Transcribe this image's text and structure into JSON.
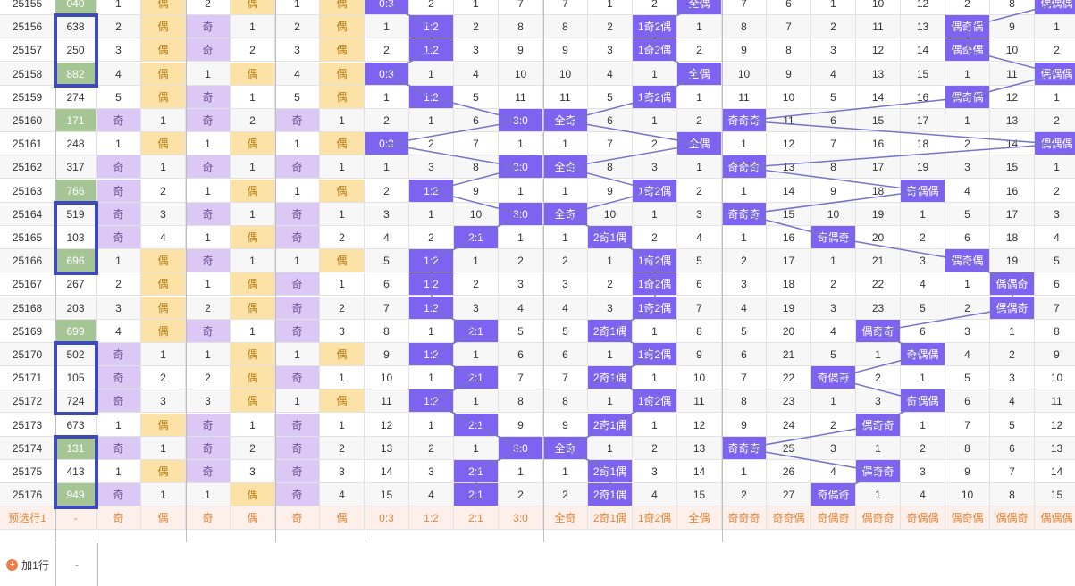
{
  "rows": [
    {
      "id": "25155",
      "num": "040",
      "c": [
        "1",
        "偶",
        "2",
        "偶",
        "1",
        "偶",
        "0:3",
        "2",
        "1",
        "7",
        "7",
        "1",
        "2",
        "全偶",
        "7",
        "6",
        "1",
        "10",
        "12",
        "2",
        "8",
        "偶偶偶"
      ]
    },
    {
      "id": "25156",
      "num": "638",
      "c": [
        "2",
        "偶",
        "奇",
        "1",
        "2",
        "偶",
        "1",
        "1:2",
        "2",
        "8",
        "8",
        "2",
        "1奇2偶",
        "1",
        "8",
        "7",
        "2",
        "11",
        "13",
        "偶奇偶",
        "9",
        "1"
      ]
    },
    {
      "id": "25157",
      "num": "250",
      "c": [
        "3",
        "偶",
        "奇",
        "2",
        "3",
        "偶",
        "2",
        "1:2",
        "3",
        "9",
        "9",
        "3",
        "1奇2偶",
        "2",
        "9",
        "8",
        "3",
        "12",
        "14",
        "偶奇偶",
        "10",
        "2"
      ]
    },
    {
      "id": "25158",
      "num": "882",
      "c": [
        "4",
        "偶",
        "1",
        "偶",
        "4",
        "偶",
        "0:3",
        "1",
        "4",
        "10",
        "10",
        "4",
        "1",
        "全偶",
        "10",
        "9",
        "4",
        "13",
        "15",
        "1",
        "11",
        "偶偶偶"
      ]
    },
    {
      "id": "25159",
      "num": "274",
      "c": [
        "5",
        "偶",
        "奇",
        "1",
        "5",
        "偶",
        "1",
        "1:2",
        "5",
        "11",
        "11",
        "5",
        "1奇2偶",
        "1",
        "11",
        "10",
        "5",
        "14",
        "16",
        "偶奇偶",
        "12",
        "1"
      ]
    },
    {
      "id": "25160",
      "num": "171",
      "c": [
        "奇",
        "1",
        "奇",
        "2",
        "奇",
        "1",
        "2",
        "1",
        "6",
        "3:0",
        "全奇",
        "6",
        "1",
        "2",
        "奇奇奇",
        "11",
        "6",
        "15",
        "17",
        "1",
        "13",
        "2"
      ]
    },
    {
      "id": "25161",
      "num": "248",
      "c": [
        "1",
        "偶",
        "1",
        "偶",
        "1",
        "偶",
        "0:3",
        "2",
        "7",
        "1",
        "1",
        "7",
        "2",
        "全偶",
        "1",
        "12",
        "7",
        "16",
        "18",
        "2",
        "14",
        "偶偶偶"
      ]
    },
    {
      "id": "25162",
      "num": "317",
      "c": [
        "奇",
        "1",
        "奇",
        "1",
        "奇",
        "1",
        "1",
        "3",
        "8",
        "3:0",
        "全奇",
        "8",
        "3",
        "1",
        "奇奇奇",
        "13",
        "8",
        "17",
        "19",
        "3",
        "15",
        "1"
      ]
    },
    {
      "id": "25163",
      "num": "766",
      "c": [
        "奇",
        "2",
        "1",
        "偶",
        "1",
        "偶",
        "2",
        "1:2",
        "9",
        "1",
        "1",
        "9",
        "1奇2偶",
        "2",
        "1",
        "14",
        "9",
        "18",
        "奇偶偶",
        "4",
        "16",
        "2"
      ]
    },
    {
      "id": "25164",
      "num": "519",
      "c": [
        "奇",
        "3",
        "奇",
        "1",
        "奇",
        "1",
        "3",
        "1",
        "10",
        "3:0",
        "全奇",
        "10",
        "1",
        "3",
        "奇奇奇",
        "15",
        "10",
        "19",
        "1",
        "5",
        "17",
        "3"
      ]
    },
    {
      "id": "25165",
      "num": "103",
      "c": [
        "奇",
        "4",
        "1",
        "偶",
        "奇",
        "2",
        "4",
        "2",
        "2:1",
        "1",
        "1",
        "2奇1偶",
        "2",
        "4",
        "1",
        "16",
        "奇偶奇",
        "20",
        "2",
        "6",
        "18",
        "4"
      ]
    },
    {
      "id": "25166",
      "num": "696",
      "c": [
        "1",
        "偶",
        "奇",
        "1",
        "1",
        "偶",
        "5",
        "1:2",
        "1",
        "2",
        "2",
        "1",
        "1奇2偶",
        "5",
        "2",
        "17",
        "1",
        "21",
        "3",
        "偶奇偶",
        "19",
        "5"
      ]
    },
    {
      "id": "25167",
      "num": "267",
      "c": [
        "2",
        "偶",
        "1",
        "偶",
        "奇",
        "1",
        "6",
        "1:2",
        "2",
        "3",
        "3",
        "2",
        "1奇2偶",
        "6",
        "3",
        "18",
        "2",
        "22",
        "4",
        "1",
        "偶偶奇",
        "6"
      ]
    },
    {
      "id": "25168",
      "num": "203",
      "c": [
        "3",
        "偶",
        "2",
        "偶",
        "奇",
        "2",
        "7",
        "1:2",
        "3",
        "4",
        "4",
        "3",
        "1奇2偶",
        "7",
        "4",
        "19",
        "3",
        "23",
        "5",
        "2",
        "偶偶奇",
        "7"
      ]
    },
    {
      "id": "25169",
      "num": "699",
      "c": [
        "4",
        "偶",
        "奇",
        "1",
        "奇",
        "3",
        "8",
        "1",
        "2:1",
        "5",
        "5",
        "2奇1偶",
        "1",
        "8",
        "5",
        "20",
        "4",
        "偶奇奇",
        "6",
        "3",
        "1",
        "8"
      ]
    },
    {
      "id": "25170",
      "num": "502",
      "c": [
        "奇",
        "1",
        "1",
        "偶",
        "1",
        "偶",
        "9",
        "1:2",
        "1",
        "6",
        "6",
        "1",
        "1奇2偶",
        "9",
        "6",
        "21",
        "5",
        "1",
        "奇偶偶",
        "4",
        "2",
        "9"
      ]
    },
    {
      "id": "25171",
      "num": "105",
      "c": [
        "奇",
        "2",
        "2",
        "偶",
        "奇",
        "1",
        "10",
        "1",
        "2:1",
        "7",
        "7",
        "2奇1偶",
        "1",
        "10",
        "7",
        "22",
        "奇偶奇",
        "2",
        "1",
        "5",
        "3",
        "10"
      ]
    },
    {
      "id": "25172",
      "num": "724",
      "c": [
        "奇",
        "3",
        "3",
        "偶",
        "1",
        "偶",
        "11",
        "1:2",
        "1",
        "8",
        "8",
        "1",
        "1奇2偶",
        "11",
        "8",
        "23",
        "1",
        "3",
        "奇偶偶",
        "6",
        "4",
        "11"
      ]
    },
    {
      "id": "25173",
      "num": "673",
      "c": [
        "1",
        "偶",
        "奇",
        "1",
        "奇",
        "1",
        "12",
        "1",
        "2:1",
        "9",
        "9",
        "2奇1偶",
        "1",
        "12",
        "9",
        "24",
        "2",
        "偶奇奇",
        "1",
        "7",
        "5",
        "12"
      ]
    },
    {
      "id": "25174",
      "num": "131",
      "c": [
        "奇",
        "1",
        "奇",
        "2",
        "奇",
        "2",
        "13",
        "2",
        "1",
        "3:0",
        "全奇",
        "1",
        "2",
        "13",
        "奇奇奇",
        "25",
        "3",
        "1",
        "2",
        "8",
        "6",
        "13"
      ]
    },
    {
      "id": "25175",
      "num": "413",
      "c": [
        "1",
        "偶",
        "奇",
        "3",
        "奇",
        "3",
        "14",
        "3",
        "2:1",
        "1",
        "1",
        "2奇1偶",
        "3",
        "14",
        "1",
        "26",
        "4",
        "偶奇奇",
        "3",
        "9",
        "7",
        "14"
      ]
    },
    {
      "id": "25176",
      "num": "949",
      "c": [
        "奇",
        "1",
        "1",
        "偶",
        "奇",
        "4",
        "15",
        "4",
        "2:1",
        "2",
        "2",
        "2奇1偶",
        "4",
        "15",
        "2",
        "27",
        "奇偶奇",
        "1",
        "4",
        "10",
        "8",
        "15"
      ]
    }
  ],
  "footer": {
    "label": "预选行1",
    "num": "-",
    "c": [
      "奇",
      "偶",
      "奇",
      "偶",
      "奇",
      "偶",
      "0:3",
      "1:2",
      "2:1",
      "3:0",
      "全奇",
      "2奇1偶",
      "1奇2偶",
      "全偶",
      "奇奇奇",
      "奇奇偶",
      "奇偶奇",
      "偶奇奇",
      "奇偶偶",
      "偶奇偶",
      "偶偶奇",
      "偶偶偶"
    ]
  },
  "add_row": {
    "label": "加1行",
    "plus": "+",
    "num": "-"
  },
  "colors": {
    "mark": "#7e63f1",
    "odd_bg": "#dcc8f5",
    "even_bg": "#fde2a8",
    "green_bg": "#a5c694",
    "line": "#7674c6",
    "box": "#3d4ab8"
  }
}
